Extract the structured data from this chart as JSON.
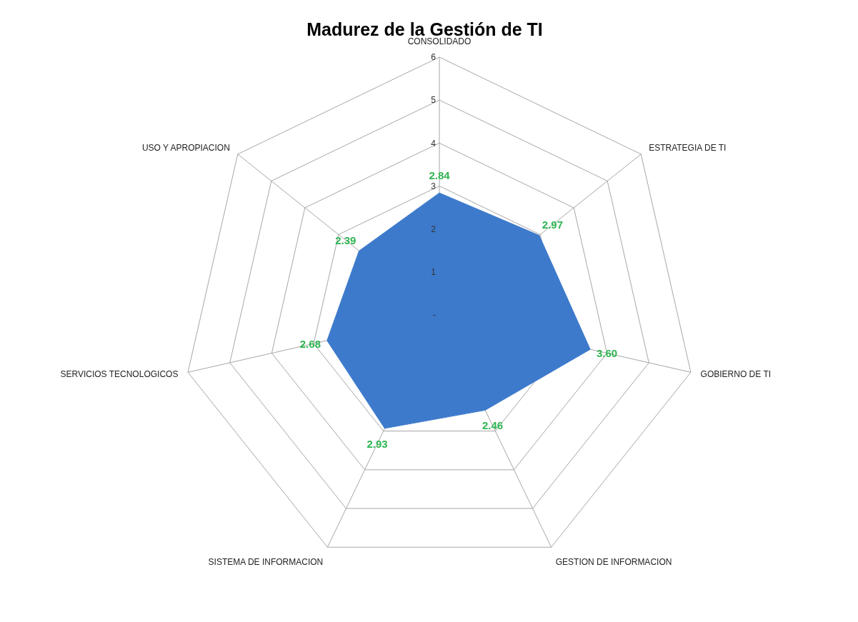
{
  "chart_data": {
    "type": "radar",
    "title": "Madurez de la Gestión de TI",
    "categories": [
      "CONSOLIDADO",
      "ESTRATEGIA DE TI",
      "GOBIERNO DE TI",
      "GESTION DE INFORMACION",
      "SISTEMA DE INFORMACION",
      "SERVICIOS TECNOLOGICOS",
      "USO Y APROPIACION"
    ],
    "series": [
      {
        "color": "#3d7acb",
        "values": [
          2.84,
          2.97,
          3.6,
          2.46,
          2.93,
          2.68,
          2.39
        ],
        "value_labels": [
          "2.84",
          "2.97",
          "3.60",
          "2.46",
          "2.93",
          "2.68",
          "2.39"
        ]
      }
    ],
    "ylim": [
      0,
      6
    ],
    "yticks": [
      {
        "value": 0,
        "label": "-"
      },
      1,
      2,
      3,
      4,
      5,
      6
    ],
    "grid": true
  }
}
